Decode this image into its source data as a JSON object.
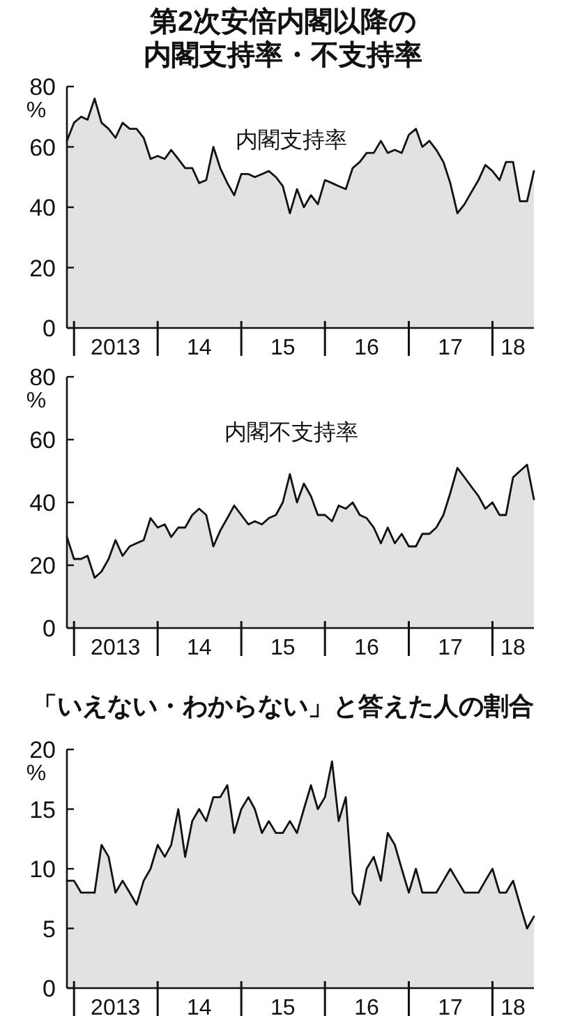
{
  "chart_data": [
    {
      "type": "area",
      "title": "第2次安倍内閣以降の内閣支持率・不支持率",
      "ylabel": "%",
      "xlim": [
        "2012-12",
        "2018-07"
      ],
      "ylim": [
        0,
        80
      ],
      "yticks": [
        0,
        20,
        40,
        60,
        80
      ],
      "xticks": [
        {
          "value": "2013-01",
          "label": null
        },
        {
          "value": "2013-07",
          "label": "2013"
        },
        {
          "value": "2014-01",
          "label": null
        },
        {
          "value": "2014-07",
          "label": "14"
        },
        {
          "value": "2015-01",
          "label": null
        },
        {
          "value": "2015-07",
          "label": "15"
        },
        {
          "value": "2016-01",
          "label": null
        },
        {
          "value": "2016-07",
          "label": "16"
        },
        {
          "value": "2017-01",
          "label": null
        },
        {
          "value": "2017-07",
          "label": "17"
        },
        {
          "value": "2018-01",
          "label": null
        },
        {
          "value": "2018-04",
          "label": "18"
        }
      ],
      "grid": false,
      "x": [
        "2012-12",
        "2013-01",
        "2013-02",
        "2013-03",
        "2013-04",
        "2013-05",
        "2013-06",
        "2013-07",
        "2013-08",
        "2013-09",
        "2013-10",
        "2013-11",
        "2013-12",
        "2014-01",
        "2014-02",
        "2014-03",
        "2014-04",
        "2014-05",
        "2014-06",
        "2014-07",
        "2014-08",
        "2014-09",
        "2014-10",
        "2014-11",
        "2014-12",
        "2015-01",
        "2015-02",
        "2015-03",
        "2015-04",
        "2015-05",
        "2015-06",
        "2015-07",
        "2015-08",
        "2015-09",
        "2015-10",
        "2015-11",
        "2015-12",
        "2016-01",
        "2016-02",
        "2016-03",
        "2016-04",
        "2016-05",
        "2016-06",
        "2016-07",
        "2016-08",
        "2016-09",
        "2016-10",
        "2016-11",
        "2016-12",
        "2017-01",
        "2017-02",
        "2017-03",
        "2017-04",
        "2017-05",
        "2017-06",
        "2017-07",
        "2017-08",
        "2017-09",
        "2017-10",
        "2017-11",
        "2017-12",
        "2018-01",
        "2018-02",
        "2018-03",
        "2018-04",
        "2018-05",
        "2018-06",
        "2018-07"
      ],
      "series": [
        {
          "name": "内閣支持率",
          "color": "#111111",
          "values": [
            62,
            68,
            70,
            69,
            76,
            68,
            66,
            63,
            68,
            66,
            66,
            63,
            56,
            57,
            56,
            59,
            56,
            53,
            53,
            48,
            49,
            60,
            53,
            48,
            44,
            51,
            51,
            50,
            51,
            52,
            50,
            47,
            38,
            46,
            40,
            44,
            41,
            49,
            48,
            47,
            46,
            53,
            55,
            58,
            58,
            62,
            58,
            59,
            58,
            64,
            66,
            60,
            62,
            59,
            55,
            48,
            38,
            41,
            45,
            49,
            54,
            52,
            49,
            55,
            55,
            42,
            42,
            52
          ]
        }
      ]
    },
    {
      "type": "area",
      "ylabel": "%",
      "xlim": [
        "2012-12",
        "2018-07"
      ],
      "ylim": [
        0,
        80
      ],
      "yticks": [
        0,
        20,
        40,
        60,
        80
      ],
      "xticks": [
        {
          "value": "2013-01",
          "label": null
        },
        {
          "value": "2013-07",
          "label": "2013"
        },
        {
          "value": "2014-01",
          "label": null
        },
        {
          "value": "2014-07",
          "label": "14"
        },
        {
          "value": "2015-01",
          "label": null
        },
        {
          "value": "2015-07",
          "label": "15"
        },
        {
          "value": "2016-01",
          "label": null
        },
        {
          "value": "2016-07",
          "label": "16"
        },
        {
          "value": "2017-01",
          "label": null
        },
        {
          "value": "2017-07",
          "label": "17"
        },
        {
          "value": "2018-01",
          "label": null
        },
        {
          "value": "2018-04",
          "label": "18"
        }
      ],
      "grid": false,
      "x": [
        "2012-12",
        "2013-01",
        "2013-02",
        "2013-03",
        "2013-04",
        "2013-05",
        "2013-06",
        "2013-07",
        "2013-08",
        "2013-09",
        "2013-10",
        "2013-11",
        "2013-12",
        "2014-01",
        "2014-02",
        "2014-03",
        "2014-04",
        "2014-05",
        "2014-06",
        "2014-07",
        "2014-08",
        "2014-09",
        "2014-10",
        "2014-11",
        "2014-12",
        "2015-01",
        "2015-02",
        "2015-03",
        "2015-04",
        "2015-05",
        "2015-06",
        "2015-07",
        "2015-08",
        "2015-09",
        "2015-10",
        "2015-11",
        "2015-12",
        "2016-01",
        "2016-02",
        "2016-03",
        "2016-04",
        "2016-05",
        "2016-06",
        "2016-07",
        "2016-08",
        "2016-09",
        "2016-10",
        "2016-11",
        "2016-12",
        "2017-01",
        "2017-02",
        "2017-03",
        "2017-04",
        "2017-05",
        "2017-06",
        "2017-07",
        "2017-08",
        "2017-09",
        "2017-10",
        "2017-11",
        "2017-12",
        "2018-01",
        "2018-02",
        "2018-03",
        "2018-04",
        "2018-05",
        "2018-06",
        "2018-07"
      ],
      "series": [
        {
          "name": "内閣不支持率",
          "color": "#111111",
          "values": [
            29,
            22,
            22,
            23,
            16,
            18,
            22,
            28,
            23,
            26,
            27,
            28,
            35,
            32,
            33,
            29,
            32,
            32,
            36,
            38,
            36,
            26,
            31,
            35,
            39,
            36,
            33,
            34,
            33,
            35,
            36,
            40,
            49,
            40,
            46,
            42,
            36,
            36,
            34,
            39,
            38,
            40,
            36,
            35,
            32,
            27,
            32,
            27,
            30,
            26,
            26,
            30,
            30,
            32,
            36,
            43,
            51,
            48,
            45,
            42,
            38,
            40,
            36,
            36,
            48,
            50,
            52,
            41
          ]
        }
      ]
    },
    {
      "type": "area",
      "title": "「いえない・わからない」と答えた人の割合",
      "ylabel": "%",
      "xlim": [
        "2012-12",
        "2018-07"
      ],
      "ylim": [
        0,
        20
      ],
      "yticks": [
        0,
        5,
        10,
        15,
        20
      ],
      "xticks": [
        {
          "value": "2013-01",
          "label": null
        },
        {
          "value": "2013-07",
          "label": "2013"
        },
        {
          "value": "2014-01",
          "label": null
        },
        {
          "value": "2014-07",
          "label": "14"
        },
        {
          "value": "2015-01",
          "label": null
        },
        {
          "value": "2015-07",
          "label": "15"
        },
        {
          "value": "2016-01",
          "label": null
        },
        {
          "value": "2016-07",
          "label": "16"
        },
        {
          "value": "2017-01",
          "label": null
        },
        {
          "value": "2017-07",
          "label": "17"
        },
        {
          "value": "2018-01",
          "label": null
        },
        {
          "value": "2018-04",
          "label": "18"
        }
      ],
      "grid": false,
      "x": [
        "2012-12",
        "2013-01",
        "2013-02",
        "2013-03",
        "2013-04",
        "2013-05",
        "2013-06",
        "2013-07",
        "2013-08",
        "2013-09",
        "2013-10",
        "2013-11",
        "2013-12",
        "2014-01",
        "2014-02",
        "2014-03",
        "2014-04",
        "2014-05",
        "2014-06",
        "2014-07",
        "2014-08",
        "2014-09",
        "2014-10",
        "2014-11",
        "2014-12",
        "2015-01",
        "2015-02",
        "2015-03",
        "2015-04",
        "2015-05",
        "2015-06",
        "2015-07",
        "2015-08",
        "2015-09",
        "2015-10",
        "2015-11",
        "2015-12",
        "2016-01",
        "2016-02",
        "2016-03",
        "2016-04",
        "2016-05",
        "2016-06",
        "2016-07",
        "2016-08",
        "2016-09",
        "2016-10",
        "2016-11",
        "2016-12",
        "2017-01",
        "2017-02",
        "2017-03",
        "2017-04",
        "2017-05",
        "2017-06",
        "2017-07",
        "2017-08",
        "2017-09",
        "2017-10",
        "2017-11",
        "2017-12",
        "2018-01",
        "2018-02",
        "2018-03",
        "2018-04",
        "2018-05",
        "2018-06",
        "2018-07"
      ],
      "series": [
        {
          "color": "#111111",
          "values": [
            9,
            9,
            8,
            8,
            8,
            12,
            11,
            8,
            9,
            8,
            7,
            9,
            10,
            12,
            11,
            12,
            15,
            11,
            14,
            15,
            14,
            16,
            16,
            17,
            13,
            15,
            16,
            15,
            13,
            14,
            13,
            13,
            14,
            13,
            15,
            17,
            15,
            16,
            19,
            14,
            16,
            8,
            7,
            10,
            11,
            9,
            13,
            12,
            10,
            8,
            10,
            8,
            8,
            8,
            9,
            10,
            9,
            8,
            8,
            8,
            9,
            10,
            8,
            8,
            9,
            7,
            5,
            6
          ]
        }
      ]
    }
  ]
}
